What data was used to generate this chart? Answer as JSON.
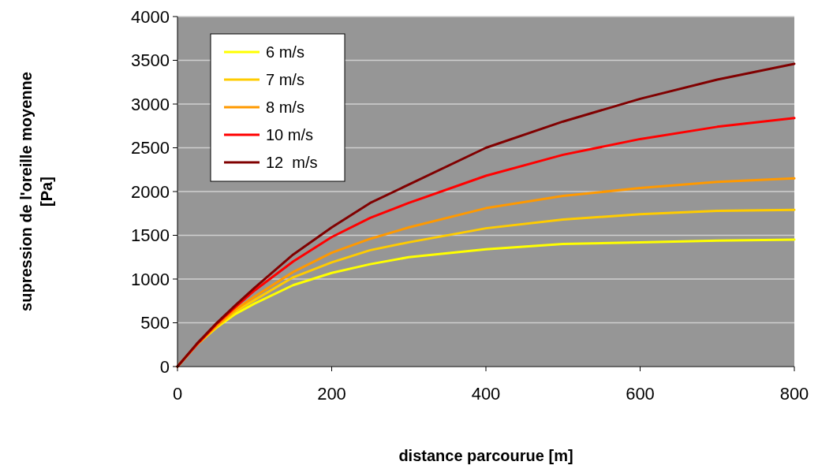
{
  "chart_data": {
    "type": "line",
    "xlabel": "distance parcourue [m]",
    "ylabel": "supression de l'oreille moyenne [Pa]",
    "x": [
      0,
      25,
      50,
      75,
      100,
      150,
      200,
      250,
      300,
      400,
      500,
      600,
      700,
      800
    ],
    "series": [
      {
        "name": "6 m/s",
        "color": "#ffff00",
        "values": [
          0,
          250,
          440,
          600,
          720,
          930,
          1070,
          1170,
          1250,
          1340,
          1400,
          1420,
          1440,
          1450
        ]
      },
      {
        "name": "7 m/s",
        "color": "#ffcc00",
        "values": [
          0,
          250,
          450,
          630,
          760,
          1020,
          1190,
          1330,
          1420,
          1580,
          1680,
          1740,
          1780,
          1790
        ]
      },
      {
        "name": "8 m/s",
        "color": "#ff9900",
        "values": [
          0,
          250,
          460,
          650,
          800,
          1080,
          1300,
          1460,
          1590,
          1810,
          1950,
          2040,
          2110,
          2150
        ]
      },
      {
        "name": "10 m/s",
        "color": "#ff0000",
        "values": [
          0,
          250,
          480,
          680,
          870,
          1200,
          1480,
          1700,
          1870,
          2180,
          2420,
          2600,
          2740,
          2840
        ]
      },
      {
        "name": "12  m/s",
        "color": "#800000",
        "values": [
          0,
          260,
          490,
          700,
          900,
          1280,
          1590,
          1870,
          2080,
          2500,
          2800,
          3060,
          3280,
          3460
        ]
      }
    ],
    "xlim": [
      0,
      800
    ],
    "xticks": [
      0,
      200,
      400,
      600,
      800
    ],
    "ylim": [
      0,
      4000
    ],
    "yticks": [
      0,
      500,
      1000,
      1500,
      2000,
      2500,
      3000,
      3500,
      4000
    ],
    "grid": "y",
    "legend": "top left",
    "marker": "none",
    "line_style": "solid"
  }
}
